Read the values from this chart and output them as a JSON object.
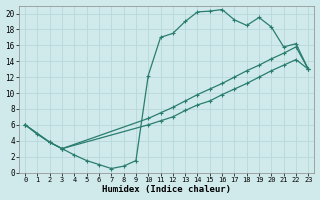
{
  "xlabel": "Humidex (Indice chaleur)",
  "xlim": [
    -0.5,
    23.5
  ],
  "ylim": [
    0,
    21
  ],
  "xticks": [
    0,
    1,
    2,
    3,
    4,
    5,
    6,
    7,
    8,
    9,
    10,
    11,
    12,
    13,
    14,
    15,
    16,
    17,
    18,
    19,
    20,
    21,
    22,
    23
  ],
  "yticks": [
    0,
    2,
    4,
    6,
    8,
    10,
    12,
    14,
    16,
    18,
    20
  ],
  "background_color": "#d0eaec",
  "grid_color": "#c0d8da",
  "line_color": "#2a7d6e",
  "curve1_x": [
    0,
    1,
    2,
    3,
    4,
    5,
    6,
    7,
    8,
    9,
    10,
    11,
    12,
    13,
    14,
    15,
    16,
    17,
    18,
    19,
    20,
    21,
    22,
    23
  ],
  "curve1_y": [
    6.0,
    4.8,
    3.8,
    3.0,
    2.2,
    1.5,
    1.0,
    0.5,
    0.8,
    1.5,
    12.2,
    17.0,
    17.5,
    19.0,
    20.2,
    20.3,
    20.5,
    19.2,
    18.5,
    19.5,
    18.3,
    15.8,
    16.2,
    13.0
  ],
  "curve2_x": [
    0,
    2,
    3,
    10,
    11,
    12,
    13,
    14,
    15,
    16,
    17,
    18,
    19,
    20,
    21,
    22,
    23
  ],
  "curve2_y": [
    6.0,
    3.8,
    3.0,
    6.8,
    7.5,
    8.2,
    9.0,
    9.8,
    10.5,
    11.2,
    12.0,
    12.8,
    13.5,
    14.3,
    15.0,
    15.8,
    13.0
  ],
  "curve3_x": [
    0,
    2,
    3,
    10,
    11,
    12,
    13,
    14,
    15,
    16,
    17,
    18,
    19,
    20,
    21,
    22,
    23
  ],
  "curve3_y": [
    6.0,
    3.8,
    3.0,
    6.0,
    6.5,
    7.0,
    7.8,
    8.5,
    9.0,
    9.8,
    10.5,
    11.2,
    12.0,
    12.8,
    13.5,
    14.2,
    13.0
  ]
}
